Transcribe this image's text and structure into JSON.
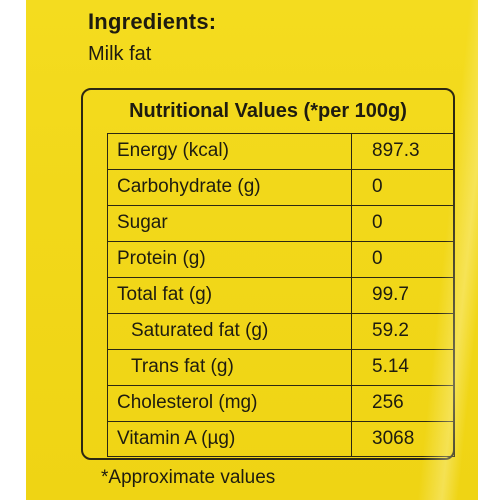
{
  "ingredients": {
    "heading": "Ingredients:",
    "text": "Milk fat"
  },
  "nutrition": {
    "title": "Nutritional Values (*per 100g)",
    "rows": [
      {
        "label": "Energy (kcal)",
        "value": "897.3"
      },
      {
        "label": "Carbohydrate (g)",
        "value": "0"
      },
      {
        "label": "Sugar",
        "value": "0"
      },
      {
        "label": "Protein (g)",
        "value": "0"
      },
      {
        "label": "Total fat (g)",
        "value": "99.7"
      },
      {
        "label": "Saturated fat (g)",
        "value": "59.2"
      },
      {
        "label": "Trans fat (g)",
        "value": "5.14"
      },
      {
        "label": "Cholesterol (mg)",
        "value": "256"
      },
      {
        "label": "Vitamin A (µg)",
        "value": "3068"
      }
    ],
    "footnote": "*Approximate values"
  },
  "colors": {
    "background": "#f2d81a",
    "ink": "#1e1c10"
  }
}
